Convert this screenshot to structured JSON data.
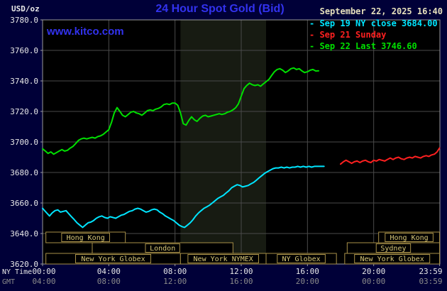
{
  "header": {
    "units_label": "USD/oz",
    "title": "24 Hour Spot Gold (Bid)",
    "datetime": "September 22, 2025 16:40",
    "watermark": "www.kitco.com"
  },
  "legend": {
    "items": [
      {
        "marker": "-",
        "label": "Sep 19 NY close 3684.00",
        "color": "#00e5ff"
      },
      {
        "marker": "-",
        "label": "Sep 21 Sunday",
        "color": "#ff2020"
      },
      {
        "marker": "-",
        "label": "Sep 22 Last 3746.60",
        "color": "#00e000"
      }
    ]
  },
  "colors": {
    "page_bg": "#000038",
    "plot_bg": "#000000",
    "band": "#171b12",
    "grid": "#4a4a4a",
    "border": "#9a9a9a",
    "axis_text": "#e8e8e8",
    "axis_text_secondary": "#8a8a8a",
    "session_border": "#a89048",
    "session_fill": "#000000",
    "session_text": "#d8c878"
  },
  "axes": {
    "ny_time_label": "NY Time",
    "gmt_label": "GMT",
    "x_min": 0,
    "x_max": 24,
    "y_min": 3620,
    "y_max": 3780,
    "y_ticks": [
      "3620.0",
      "3640.0",
      "3660.0",
      "3680.0",
      "3700.0",
      "3720.0",
      "3740.0",
      "3760.0",
      "3780.0"
    ],
    "x_ticks": [
      {
        "hour": 0,
        "ny": "00:00",
        "gmt": "04:00"
      },
      {
        "hour": 4,
        "ny": "04:00",
        "gmt": "08:00"
      },
      {
        "hour": 8,
        "ny": "08:00",
        "gmt": "12:00"
      },
      {
        "hour": 12,
        "ny": "12:00",
        "gmt": "16:00"
      },
      {
        "hour": 16,
        "ny": "16:00",
        "gmt": "20:00"
      },
      {
        "hour": 20,
        "ny": "20:00",
        "gmt": "00:00"
      },
      {
        "hour": 23.983,
        "ny": "23:59",
        "gmt": "03:59"
      }
    ]
  },
  "sessions": {
    "rows": [
      [
        {
          "label": "Hong Kong",
          "start": 0.2,
          "end": 5.0
        },
        {
          "label": "Hong Kong",
          "start": 20.3,
          "end": 23.98
        }
      ],
      [
        {
          "label": "London",
          "start": 3.0,
          "end": 11.5
        },
        {
          "label": "Sydney",
          "start": 18.4,
          "end": 23.98
        }
      ],
      [
        {
          "label": "New York Globex",
          "start": 0.2,
          "end": 8.33
        },
        {
          "label": "New York NYMEX",
          "start": 8.33,
          "end": 13.5
        },
        {
          "label": "NY Globex",
          "start": 13.5,
          "end": 17.75
        },
        {
          "label": "New York Globex",
          "start": 18.25,
          "end": 23.98
        }
      ]
    ]
  },
  "chart_data": {
    "type": "line",
    "title": "24 Hour Spot Gold (Bid)",
    "ylabel": "USD/oz",
    "xlabel": "NY Time / GMT",
    "xlim": [
      0,
      24
    ],
    "ylim": [
      3620,
      3780
    ],
    "grid": true,
    "legend_position": "top-right",
    "highlight_band": {
      "start_hour": 8.33,
      "end_hour": 13.5
    },
    "last_price": 3746.6,
    "prior_close": 3684.0,
    "series": [
      {
        "name": "Sep 19 NY close 3684.00",
        "color": "#00e5ff",
        "points": [
          [
            0.0,
            3656.5
          ],
          [
            0.25,
            3653.5
          ],
          [
            0.42,
            3651.5
          ],
          [
            0.58,
            3653.5
          ],
          [
            0.75,
            3655
          ],
          [
            0.92,
            3655.5
          ],
          [
            1.08,
            3654
          ],
          [
            1.25,
            3654.5
          ],
          [
            1.42,
            3655
          ],
          [
            1.58,
            3653
          ],
          [
            1.75,
            3651
          ],
          [
            1.92,
            3649
          ],
          [
            2.08,
            3647
          ],
          [
            2.25,
            3645.5
          ],
          [
            2.42,
            3644
          ],
          [
            2.58,
            3645.5
          ],
          [
            2.75,
            3647
          ],
          [
            2.92,
            3647.5
          ],
          [
            3.08,
            3648.5
          ],
          [
            3.25,
            3650
          ],
          [
            3.42,
            3651
          ],
          [
            3.58,
            3651.5
          ],
          [
            3.75,
            3650.5
          ],
          [
            3.92,
            3650
          ],
          [
            4.08,
            3651
          ],
          [
            4.25,
            3650.5
          ],
          [
            4.42,
            3650
          ],
          [
            4.58,
            3651
          ],
          [
            4.75,
            3652
          ],
          [
            4.92,
            3652.5
          ],
          [
            5.08,
            3653.5
          ],
          [
            5.25,
            3654.5
          ],
          [
            5.42,
            3655
          ],
          [
            5.58,
            3656
          ],
          [
            5.75,
            3656.5
          ],
          [
            5.92,
            3656
          ],
          [
            6.08,
            3655
          ],
          [
            6.25,
            3654
          ],
          [
            6.42,
            3654.5
          ],
          [
            6.58,
            3655.5
          ],
          [
            6.75,
            3656
          ],
          [
            6.92,
            3655.5
          ],
          [
            7.08,
            3654
          ],
          [
            7.25,
            3653
          ],
          [
            7.42,
            3651.5
          ],
          [
            7.58,
            3650.5
          ],
          [
            7.75,
            3649.5
          ],
          [
            7.92,
            3648.5
          ],
          [
            8.08,
            3647
          ],
          [
            8.25,
            3645.5
          ],
          [
            8.42,
            3644.5
          ],
          [
            8.58,
            3644
          ],
          [
            8.75,
            3645.5
          ],
          [
            8.92,
            3647
          ],
          [
            9.08,
            3649
          ],
          [
            9.25,
            3651.5
          ],
          [
            9.42,
            3653.5
          ],
          [
            9.58,
            3655
          ],
          [
            9.75,
            3656.5
          ],
          [
            9.92,
            3657.5
          ],
          [
            10.08,
            3658.5
          ],
          [
            10.25,
            3660
          ],
          [
            10.42,
            3661.5
          ],
          [
            10.58,
            3663
          ],
          [
            10.75,
            3664
          ],
          [
            10.92,
            3665
          ],
          [
            11.08,
            3666.5
          ],
          [
            11.25,
            3668
          ],
          [
            11.42,
            3670
          ],
          [
            11.58,
            3671
          ],
          [
            11.75,
            3672
          ],
          [
            11.92,
            3671.5
          ],
          [
            12.08,
            3670.5
          ],
          [
            12.25,
            3671
          ],
          [
            12.42,
            3671.5
          ],
          [
            12.58,
            3672.5
          ],
          [
            12.75,
            3673.5
          ],
          [
            12.92,
            3675
          ],
          [
            13.08,
            3676.5
          ],
          [
            13.25,
            3678
          ],
          [
            13.42,
            3679.5
          ],
          [
            13.58,
            3680.5
          ],
          [
            13.75,
            3681.5
          ],
          [
            13.92,
            3682.5
          ],
          [
            14.08,
            3683
          ],
          [
            14.25,
            3683
          ],
          [
            14.42,
            3683.5
          ],
          [
            14.58,
            3683
          ],
          [
            14.75,
            3683.5
          ],
          [
            14.92,
            3683
          ],
          [
            15.08,
            3683.5
          ],
          [
            15.25,
            3683.5
          ],
          [
            15.42,
            3684
          ],
          [
            15.58,
            3683.5
          ],
          [
            15.75,
            3684
          ],
          [
            15.92,
            3683.5
          ],
          [
            16.08,
            3684
          ],
          [
            16.25,
            3683.5
          ],
          [
            16.42,
            3684
          ],
          [
            16.58,
            3684
          ],
          [
            16.75,
            3684
          ],
          [
            17.0,
            3684
          ]
        ]
      },
      {
        "name": "Sep 21 Sunday",
        "color": "#ff2020",
        "points": [
          [
            18.0,
            3685.5
          ],
          [
            18.17,
            3687
          ],
          [
            18.33,
            3688
          ],
          [
            18.5,
            3687
          ],
          [
            18.67,
            3686
          ],
          [
            18.83,
            3687
          ],
          [
            19.0,
            3687.5
          ],
          [
            19.17,
            3686.5
          ],
          [
            19.33,
            3687.5
          ],
          [
            19.5,
            3688
          ],
          [
            19.67,
            3687
          ],
          [
            19.83,
            3686.5
          ],
          [
            20.0,
            3688
          ],
          [
            20.17,
            3687.5
          ],
          [
            20.33,
            3688.5
          ],
          [
            20.5,
            3688
          ],
          [
            20.67,
            3687.5
          ],
          [
            20.83,
            3688.5
          ],
          [
            21.0,
            3689.5
          ],
          [
            21.17,
            3688.5
          ],
          [
            21.33,
            3689.5
          ],
          [
            21.5,
            3690
          ],
          [
            21.67,
            3689
          ],
          [
            21.83,
            3688.5
          ],
          [
            22.0,
            3689.5
          ],
          [
            22.17,
            3690
          ],
          [
            22.33,
            3689.5
          ],
          [
            22.5,
            3690.5
          ],
          [
            22.67,
            3690
          ],
          [
            22.83,
            3689.5
          ],
          [
            23.0,
            3690.5
          ],
          [
            23.17,
            3691
          ],
          [
            23.33,
            3690.5
          ],
          [
            23.5,
            3691.5
          ],
          [
            23.67,
            3692
          ],
          [
            23.83,
            3693.5
          ],
          [
            23.98,
            3696
          ]
        ]
      },
      {
        "name": "Sep 22 Last 3746.60",
        "color": "#00e000",
        "points": [
          [
            0.0,
            3695.5
          ],
          [
            0.17,
            3694
          ],
          [
            0.33,
            3692.5
          ],
          [
            0.5,
            3693.5
          ],
          [
            0.67,
            3692
          ],
          [
            0.83,
            3693
          ],
          [
            1.0,
            3694
          ],
          [
            1.17,
            3695
          ],
          [
            1.33,
            3694
          ],
          [
            1.5,
            3694.5
          ],
          [
            1.67,
            3696
          ],
          [
            1.83,
            3697
          ],
          [
            2.0,
            3699
          ],
          [
            2.17,
            3701
          ],
          [
            2.33,
            3702
          ],
          [
            2.5,
            3702.5
          ],
          [
            2.67,
            3702
          ],
          [
            2.83,
            3702.5
          ],
          [
            3.0,
            3703
          ],
          [
            3.17,
            3702.5
          ],
          [
            3.33,
            3703.5
          ],
          [
            3.5,
            3704
          ],
          [
            3.67,
            3705
          ],
          [
            3.83,
            3706.5
          ],
          [
            4.0,
            3708
          ],
          [
            4.17,
            3713
          ],
          [
            4.33,
            3719
          ],
          [
            4.5,
            3722.5
          ],
          [
            4.67,
            3720
          ],
          [
            4.83,
            3717.5
          ],
          [
            5.0,
            3716.5
          ],
          [
            5.17,
            3718
          ],
          [
            5.33,
            3719.5
          ],
          [
            5.5,
            3720
          ],
          [
            5.67,
            3719
          ],
          [
            5.83,
            3718.5
          ],
          [
            6.0,
            3717.5
          ],
          [
            6.17,
            3719
          ],
          [
            6.33,
            3720.5
          ],
          [
            6.5,
            3721
          ],
          [
            6.67,
            3720.5
          ],
          [
            6.83,
            3721.5
          ],
          [
            7.0,
            3722
          ],
          [
            7.17,
            3723
          ],
          [
            7.33,
            3724.5
          ],
          [
            7.5,
            3725
          ],
          [
            7.67,
            3724.5
          ],
          [
            7.83,
            3725.5
          ],
          [
            8.0,
            3725.5
          ],
          [
            8.17,
            3724
          ],
          [
            8.33,
            3719
          ],
          [
            8.5,
            3712
          ],
          [
            8.67,
            3711
          ],
          [
            8.83,
            3714
          ],
          [
            9.0,
            3716.5
          ],
          [
            9.17,
            3714.5
          ],
          [
            9.33,
            3713.5
          ],
          [
            9.5,
            3715.5
          ],
          [
            9.67,
            3717
          ],
          [
            9.83,
            3717.5
          ],
          [
            10.0,
            3716.5
          ],
          [
            10.17,
            3717
          ],
          [
            10.33,
            3717.5
          ],
          [
            10.5,
            3718
          ],
          [
            10.67,
            3718.5
          ],
          [
            10.83,
            3718
          ],
          [
            11.0,
            3718.5
          ],
          [
            11.17,
            3719.5
          ],
          [
            11.33,
            3720
          ],
          [
            11.5,
            3721
          ],
          [
            11.67,
            3722.5
          ],
          [
            11.83,
            3725
          ],
          [
            12.0,
            3730
          ],
          [
            12.17,
            3735
          ],
          [
            12.33,
            3737
          ],
          [
            12.5,
            3738.5
          ],
          [
            12.67,
            3737.5
          ],
          [
            12.83,
            3737
          ],
          [
            13.0,
            3737.5
          ],
          [
            13.17,
            3736.5
          ],
          [
            13.33,
            3738
          ],
          [
            13.5,
            3739.5
          ],
          [
            13.67,
            3741
          ],
          [
            13.83,
            3743.5
          ],
          [
            14.0,
            3746
          ],
          [
            14.17,
            3747.5
          ],
          [
            14.33,
            3748
          ],
          [
            14.5,
            3747
          ],
          [
            14.67,
            3745.5
          ],
          [
            14.83,
            3746.5
          ],
          [
            15.0,
            3748
          ],
          [
            15.17,
            3748.5
          ],
          [
            15.33,
            3747.5
          ],
          [
            15.5,
            3748
          ],
          [
            15.67,
            3746.5
          ],
          [
            15.83,
            3745.5
          ],
          [
            16.0,
            3746
          ],
          [
            16.17,
            3747
          ],
          [
            16.33,
            3747.5
          ],
          [
            16.5,
            3746.5
          ],
          [
            16.67,
            3746.6
          ]
        ]
      }
    ]
  }
}
